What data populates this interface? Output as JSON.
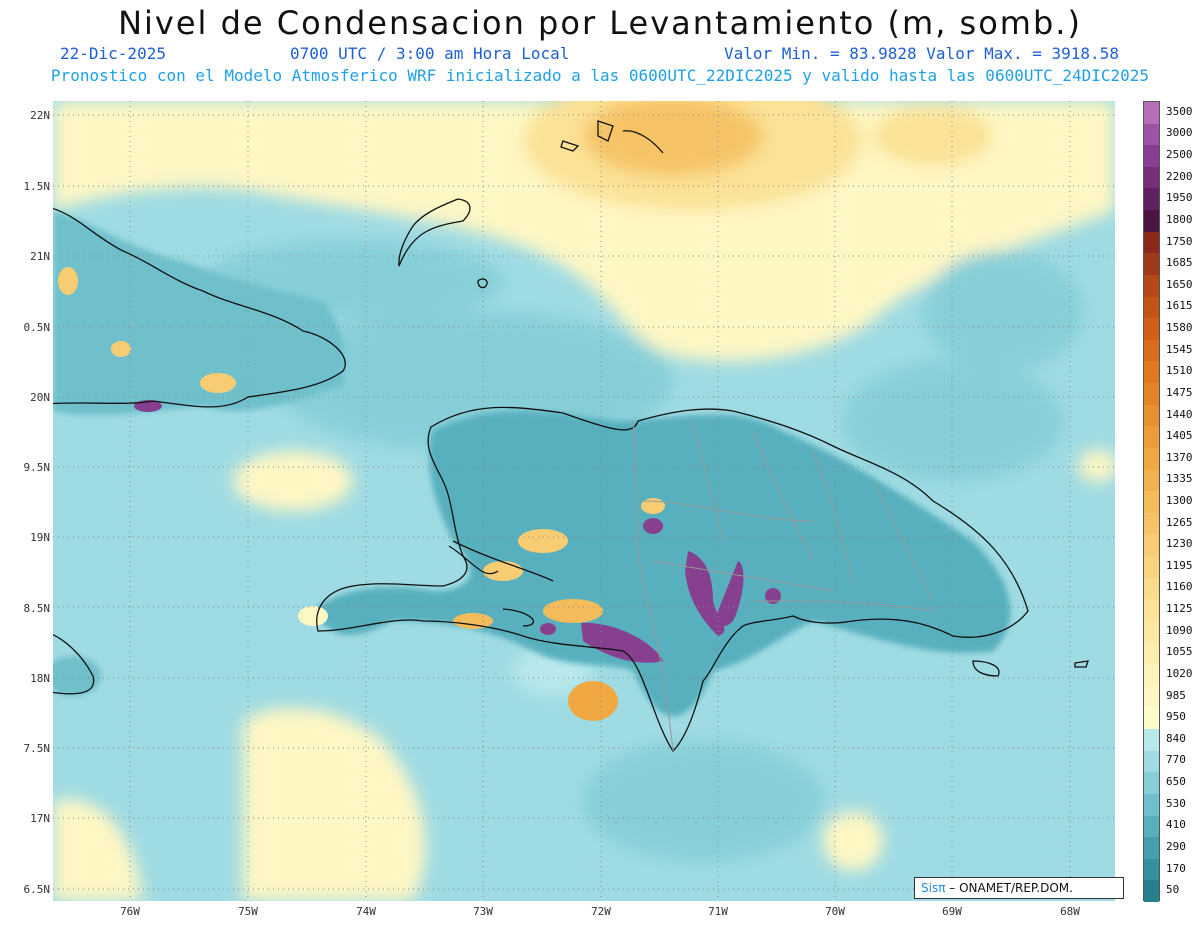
{
  "header": {
    "title": "Nivel de Condensacion por Levantamiento (m, somb.)",
    "date": "22-Dic-2025",
    "time": "0700 UTC / 3:00 am Hora Local",
    "minmax": "Valor Min. = 83.9828  Valor Max. = 3918.58",
    "description": "Pronostico con el Modelo Atmosferico WRF inicializado a las 0600UTC_22DIC2025 y valido hasta las  0600UTC_24DIC2025"
  },
  "map": {
    "lat_labels": [
      "22N",
      "1.5N",
      "21N",
      "0.5N",
      "20N",
      "9.5N",
      "19N",
      "8.5N",
      "18N",
      "7.5N",
      "17N",
      "6.5N"
    ],
    "lon_labels": [
      "76W",
      "75W",
      "74W",
      "73W",
      "72W",
      "71W",
      "70W",
      "69W",
      "68W"
    ],
    "ocean_color": "#9fdbe3"
  },
  "colorbar": {
    "labels": [
      "3500",
      "3000",
      "2500",
      "2200",
      "1950",
      "1800",
      "1750",
      "1685",
      "1650",
      "1615",
      "1580",
      "1545",
      "1510",
      "1475",
      "1440",
      "1405",
      "1370",
      "1335",
      "1300",
      "1265",
      "1230",
      "1195",
      "1160",
      "1125",
      "1090",
      "1055",
      "1020",
      "985",
      "950",
      "840",
      "770",
      "650",
      "530",
      "410",
      "290",
      "170",
      "50"
    ],
    "colors": [
      "#b36fb8",
      "#9c55a6",
      "#87408f",
      "#742f78",
      "#5f2060",
      "#4a1540",
      "#8a2a1c",
      "#a03a1a",
      "#b54718",
      "#c45416",
      "#d06018",
      "#d86c1c",
      "#e07820",
      "#e48426",
      "#e8902e",
      "#ec9c38",
      "#f0a842",
      "#f2b24e",
      "#f4bc5a",
      "#f6c466",
      "#f8cc72",
      "#f9d47e",
      "#fadb8a",
      "#fbe296",
      "#fce8a2",
      "#fdeeae",
      "#fef3ba",
      "#fef7c4",
      "#fefacc",
      "#b8e8ec",
      "#9fdbe3",
      "#87cfd8",
      "#6fc0cc",
      "#58b0be",
      "#449faf",
      "#33909f",
      "#26808f"
    ]
  },
  "credit": {
    "brand": "Sisπ",
    "text": " – ONAMET/REP.DOM."
  }
}
